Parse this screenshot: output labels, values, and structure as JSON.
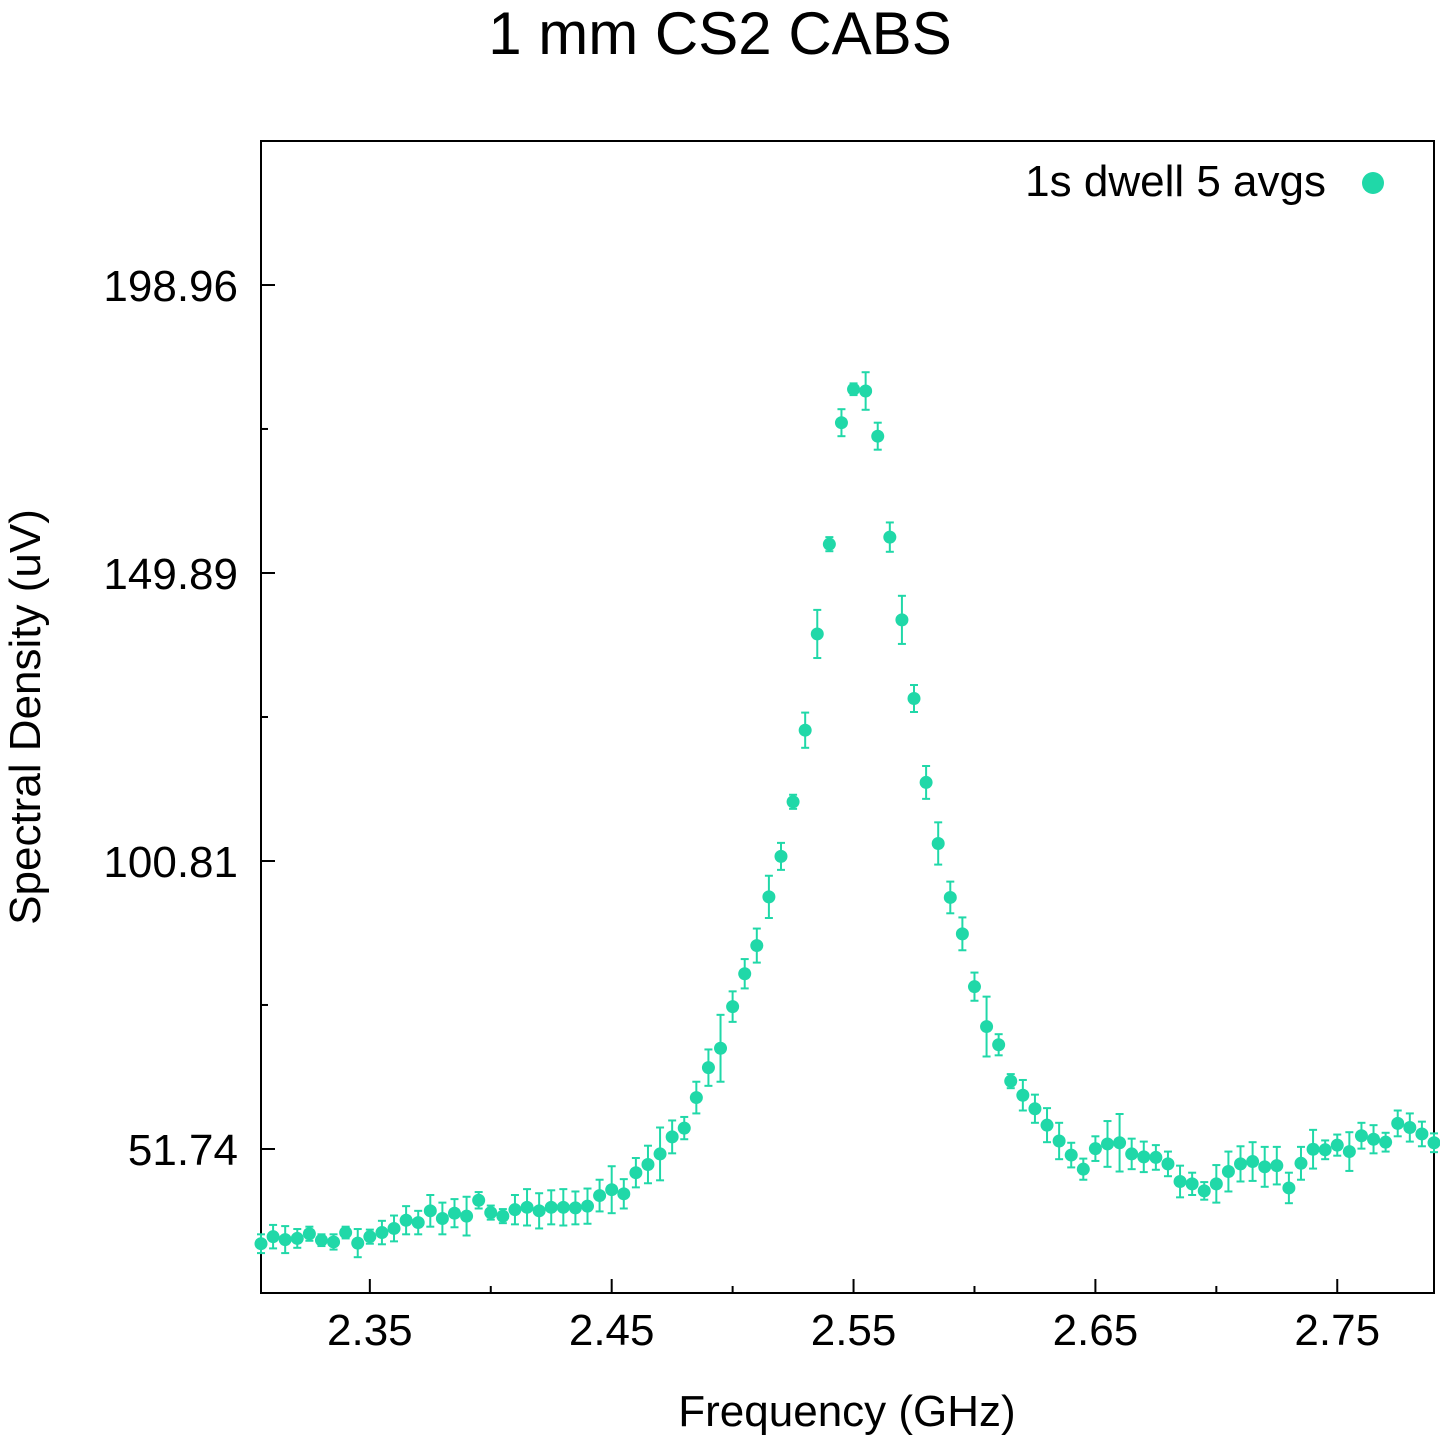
{
  "chart_data": {
    "type": "scatter",
    "title": "1 mm CS2 CABS",
    "xlabel": "Frequency (GHz)",
    "ylabel": "Spectral Density (uV)",
    "xlim": [
      2.305,
      2.79
    ],
    "ylim": [
      27.2,
      223.5
    ],
    "xticks": [
      2.35,
      2.45,
      2.55,
      2.65,
      2.75
    ],
    "xtick_labels": [
      "2.35",
      "2.45",
      "2.55",
      "2.65",
      "2.75"
    ],
    "yticks": [
      51.74,
      100.81,
      149.89,
      198.96
    ],
    "ytick_labels": [
      "51.74",
      "100.81",
      "149.89",
      "198.96"
    ],
    "y_minor_ticks": [
      76.28,
      125.35,
      174.43
    ],
    "x_minor_ticks": [
      2.4,
      2.5,
      2.6,
      2.7
    ],
    "grid": false,
    "legend_position": "top-right",
    "series": [
      {
        "name": "1s dwell 5 avgs",
        "color": "#20d8a8",
        "points": [
          [
            2.305,
            35.6,
            1.6
          ],
          [
            2.31,
            36.8,
            2.0
          ],
          [
            2.315,
            36.3,
            2.3
          ],
          [
            2.32,
            36.5,
            1.6
          ],
          [
            2.325,
            37.3,
            1.2
          ],
          [
            2.33,
            36.2,
            1.0
          ],
          [
            2.335,
            35.9,
            1.3
          ],
          [
            2.34,
            37.5,
            1.0
          ],
          [
            2.345,
            35.7,
            2.4
          ],
          [
            2.35,
            36.8,
            1.2
          ],
          [
            2.355,
            37.5,
            2.0
          ],
          [
            2.36,
            38.2,
            2.2
          ],
          [
            2.365,
            39.6,
            2.4
          ],
          [
            2.37,
            39.2,
            2.0
          ],
          [
            2.375,
            41.2,
            2.7
          ],
          [
            2.38,
            39.9,
            2.7
          ],
          [
            2.385,
            40.8,
            2.4
          ],
          [
            2.39,
            40.3,
            3.3
          ],
          [
            2.395,
            43.0,
            1.4
          ],
          [
            2.4,
            40.9,
            1.2
          ],
          [
            2.405,
            40.3,
            1.2
          ],
          [
            2.41,
            41.4,
            2.5
          ],
          [
            2.415,
            41.8,
            3.1
          ],
          [
            2.42,
            41.2,
            3.0
          ],
          [
            2.425,
            41.8,
            2.9
          ],
          [
            2.43,
            41.8,
            3.1
          ],
          [
            2.435,
            41.7,
            2.8
          ],
          [
            2.44,
            42.0,
            3.0
          ],
          [
            2.445,
            43.8,
            2.7
          ],
          [
            2.45,
            44.8,
            4.0
          ],
          [
            2.455,
            44.1,
            2.5
          ],
          [
            2.46,
            47.7,
            2.5
          ],
          [
            2.465,
            49.1,
            3.2
          ],
          [
            2.47,
            50.9,
            4.5
          ],
          [
            2.475,
            53.8,
            2.8
          ],
          [
            2.48,
            55.3,
            1.9
          ],
          [
            2.485,
            60.5,
            2.7
          ],
          [
            2.49,
            65.6,
            3.1
          ],
          [
            2.495,
            68.9,
            5.7
          ],
          [
            2.5,
            76.0,
            2.6
          ],
          [
            2.505,
            81.6,
            2.5
          ],
          [
            2.51,
            86.4,
            2.9
          ],
          [
            2.515,
            94.7,
            3.6
          ],
          [
            2.52,
            101.6,
            2.3
          ],
          [
            2.525,
            110.9,
            1.2
          ],
          [
            2.53,
            123.1,
            3.0
          ],
          [
            2.535,
            139.5,
            4.1
          ],
          [
            2.54,
            154.8,
            1.2
          ],
          [
            2.545,
            175.5,
            2.3
          ],
          [
            2.55,
            181.2,
            1.0
          ],
          [
            2.555,
            180.9,
            3.2
          ],
          [
            2.56,
            173.2,
            2.3
          ],
          [
            2.565,
            156.0,
            2.5
          ],
          [
            2.57,
            141.9,
            4.1
          ],
          [
            2.575,
            128.5,
            2.3
          ],
          [
            2.58,
            114.2,
            2.8
          ],
          [
            2.585,
            103.8,
            3.6
          ],
          [
            2.59,
            94.6,
            2.7
          ],
          [
            2.595,
            88.4,
            2.8
          ],
          [
            2.6,
            79.4,
            2.4
          ],
          [
            2.605,
            72.6,
            5.1
          ],
          [
            2.61,
            69.5,
            1.8
          ],
          [
            2.615,
            63.3,
            1.2
          ],
          [
            2.62,
            60.9,
            2.6
          ],
          [
            2.625,
            58.6,
            2.4
          ],
          [
            2.63,
            55.8,
            2.9
          ],
          [
            2.635,
            53.1,
            3.1
          ],
          [
            2.64,
            50.7,
            2.1
          ],
          [
            2.645,
            48.3,
            1.8
          ],
          [
            2.65,
            51.8,
            2.1
          ],
          [
            2.655,
            52.6,
            3.9
          ],
          [
            2.66,
            52.8,
            4.9
          ],
          [
            2.665,
            50.9,
            2.6
          ],
          [
            2.67,
            50.4,
            2.6
          ],
          [
            2.675,
            50.3,
            2.1
          ],
          [
            2.68,
            49.2,
            2.1
          ],
          [
            2.685,
            46.2,
            2.7
          ],
          [
            2.69,
            45.8,
            1.9
          ],
          [
            2.695,
            44.6,
            1.5
          ],
          [
            2.7,
            45.8,
            3.2
          ],
          [
            2.705,
            47.9,
            3.4
          ],
          [
            2.71,
            49.2,
            3.0
          ],
          [
            2.715,
            49.6,
            3.3
          ],
          [
            2.72,
            48.7,
            3.4
          ],
          [
            2.725,
            48.9,
            3.2
          ],
          [
            2.73,
            45.1,
            2.6
          ],
          [
            2.735,
            49.3,
            2.8
          ],
          [
            2.74,
            51.7,
            3.3
          ],
          [
            2.745,
            51.6,
            1.6
          ],
          [
            2.75,
            52.4,
            1.8
          ],
          [
            2.755,
            51.3,
            3.3
          ],
          [
            2.76,
            54.0,
            2.2
          ],
          [
            2.765,
            53.4,
            2.4
          ],
          [
            2.77,
            52.9,
            1.6
          ],
          [
            2.775,
            56.1,
            2.2
          ],
          [
            2.78,
            55.4,
            2.4
          ],
          [
            2.785,
            54.3,
            2.1
          ],
          [
            2.79,
            52.8,
            1.6
          ]
        ]
      }
    ]
  }
}
